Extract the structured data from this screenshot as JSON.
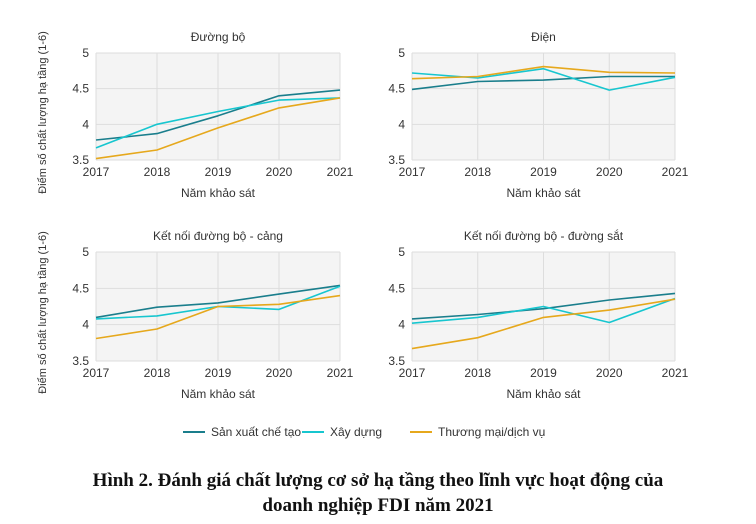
{
  "colors": {
    "manufacturing": "#1a7e8c",
    "construction": "#17c6cf",
    "trade": "#e6a81c",
    "grid": "#dddddd",
    "panel_bg": "#f4f4f4"
  },
  "legend": [
    {
      "name": "Sản xuất chế tạo",
      "color": "#1a7e8c"
    },
    {
      "name": "Xây dựng",
      "color": "#17c6cf"
    },
    {
      "name": "Thương mại/dịch vụ",
      "color": "#e6a81c"
    }
  ],
  "caption": {
    "line1": "Hình 2. Đánh giá chất lượng cơ sở hạ tầng theo lĩnh vực hoạt động của",
    "line2": "doanh nghiệp FDI năm 2021"
  },
  "chart_data": [
    {
      "type": "line",
      "title": "Đường bộ",
      "xlabel": "Năm khảo sát",
      "ylabel": "Điểm số chất lượng hạ tầng (1-6)",
      "x": [
        "2017",
        "2018",
        "2019",
        "2020",
        "2021"
      ],
      "ylim": [
        3.5,
        5
      ],
      "yticks": [
        "3.5",
        "4",
        "4.5",
        "5"
      ],
      "series": [
        {
          "name": "Sản xuất chế tạo",
          "values": [
            3.78,
            3.87,
            4.12,
            4.4,
            4.48
          ]
        },
        {
          "name": "Xây dựng",
          "values": [
            3.67,
            4.0,
            4.18,
            4.34,
            4.37
          ]
        },
        {
          "name": "Thương mại/dịch vụ",
          "values": [
            3.52,
            3.64,
            3.95,
            4.23,
            4.37
          ]
        }
      ]
    },
    {
      "type": "line",
      "title": "Điện",
      "xlabel": "Năm khảo sát",
      "ylabel": "",
      "x": [
        "2017",
        "2018",
        "2019",
        "2020",
        "2021"
      ],
      "ylim": [
        3.5,
        5
      ],
      "yticks": [
        "3.5",
        "4",
        "4.5",
        "5"
      ],
      "series": [
        {
          "name": "Sản xuất chế tạo",
          "values": [
            4.49,
            4.6,
            4.62,
            4.67,
            4.67
          ]
        },
        {
          "name": "Xây dựng",
          "values": [
            4.72,
            4.65,
            4.78,
            4.48,
            4.66
          ]
        },
        {
          "name": "Thương mại/dịch vụ",
          "values": [
            4.64,
            4.67,
            4.81,
            4.73,
            4.72
          ]
        }
      ]
    },
    {
      "type": "line",
      "title": "Kết nối đường bộ - cảng",
      "xlabel": "Năm khảo sát",
      "ylabel": "Điểm số chất lượng hạ tầng (1-6)",
      "x": [
        "2017",
        "2018",
        "2019",
        "2020",
        "2021"
      ],
      "ylim": [
        3.5,
        5
      ],
      "yticks": [
        "3.5",
        "4",
        "4.5",
        "5"
      ],
      "series": [
        {
          "name": "Sản xuất chế tạo",
          "values": [
            4.1,
            4.24,
            4.3,
            4.42,
            4.54
          ]
        },
        {
          "name": "Xây dựng",
          "values": [
            4.08,
            4.12,
            4.25,
            4.21,
            4.53
          ]
        },
        {
          "name": "Thương mại/dịch vụ",
          "values": [
            3.81,
            3.94,
            4.25,
            4.28,
            4.4
          ]
        }
      ]
    },
    {
      "type": "line",
      "title": "Kết nối đường bộ - đường sắt",
      "xlabel": "Năm khảo sát",
      "ylabel": "",
      "x": [
        "2017",
        "2018",
        "2019",
        "2020",
        "2021"
      ],
      "ylim": [
        3.5,
        5
      ],
      "yticks": [
        "3.5",
        "4",
        "4.5",
        "5"
      ],
      "series": [
        {
          "name": "Sản xuất chế tạo",
          "values": [
            4.08,
            4.14,
            4.22,
            4.34,
            4.43
          ]
        },
        {
          "name": "Xây dựng",
          "values": [
            4.02,
            4.1,
            4.25,
            4.03,
            4.36
          ]
        },
        {
          "name": "Thương mại/dịch vụ",
          "values": [
            3.67,
            3.82,
            4.1,
            4.2,
            4.35
          ]
        }
      ]
    }
  ]
}
